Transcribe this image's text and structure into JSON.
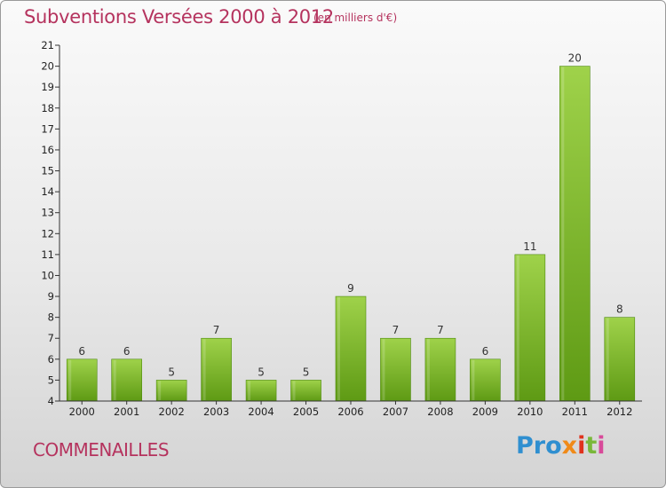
{
  "header": {
    "title": "Subventions Versées 2000 à 2012",
    "unit": "(en milliers d'€)"
  },
  "footer": {
    "commune": "COMMENAILLES",
    "logo": {
      "letters": [
        "Pro",
        "x",
        "i",
        "t",
        "i"
      ]
    }
  },
  "colors": {
    "title": "#b5335e",
    "bar_top": "#9fd24a",
    "bar_bottom": "#5e9a14",
    "axis": "#333333"
  },
  "chart_data": {
    "type": "bar",
    "title": "Subventions Versées 2000 à 2012",
    "subtitle": "(en milliers d'€)",
    "categories": [
      "2000",
      "2001",
      "2002",
      "2003",
      "2004",
      "2005",
      "2006",
      "2007",
      "2008",
      "2009",
      "2010",
      "2011",
      "2012"
    ],
    "values": [
      6,
      6,
      5,
      7,
      5,
      5,
      9,
      7,
      7,
      6,
      11,
      20,
      8
    ],
    "ylim": [
      4,
      21
    ],
    "yticks": [
      4,
      5,
      6,
      7,
      8,
      9,
      10,
      11,
      12,
      13,
      14,
      15,
      16,
      17,
      18,
      19,
      20,
      21
    ],
    "grid": false,
    "data_labels": true
  }
}
